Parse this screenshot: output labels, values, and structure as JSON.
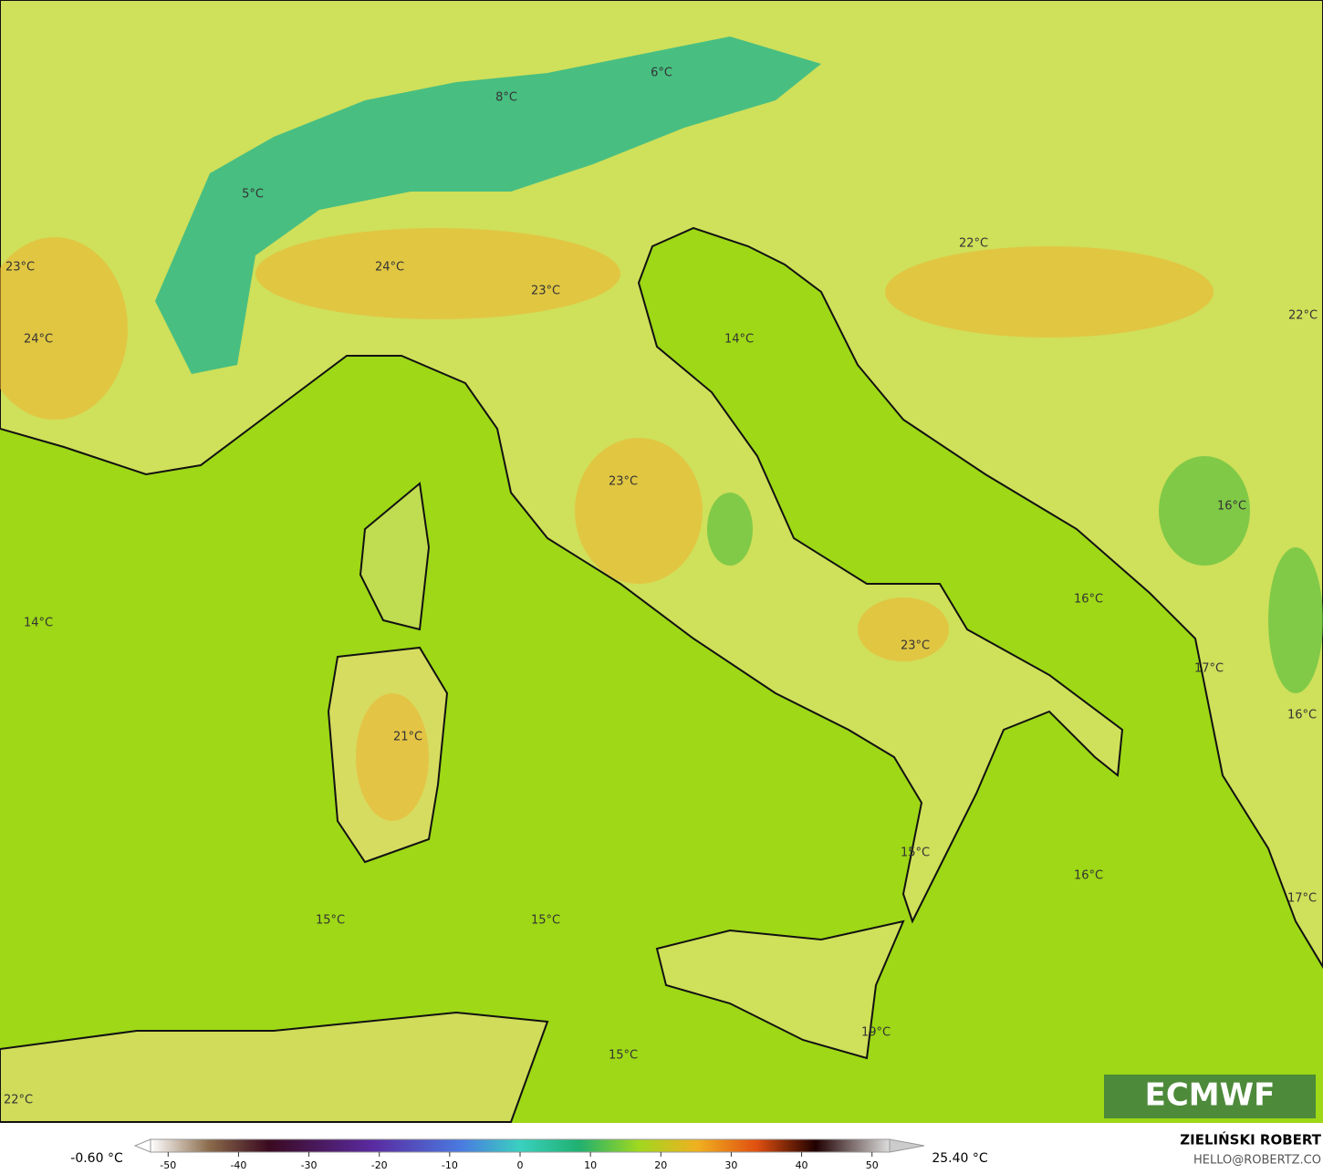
{
  "map": {
    "labels": [
      "6°C",
      "8°C",
      "5°C",
      "22°C",
      "23°C",
      "24°C",
      "23°C",
      "22°C",
      "14°C",
      "24°C",
      "23°C",
      "16°C",
      "16°C",
      "14°C",
      "23°C",
      "17°C",
      "16°C",
      "21°C",
      "15°C",
      "16°C",
      "17°C",
      "15°C",
      "15°C",
      "19°C",
      "15°C",
      "22°C"
    ]
  },
  "colorbar": {
    "min_label": "-0.60 °C",
    "max_label": "25.40 °C",
    "range": [
      -52.5,
      52.5
    ],
    "ticks": [
      -50,
      -40,
      -30,
      -20,
      -10,
      0,
      10,
      20,
      30,
      40,
      50
    ]
  },
  "credit": {
    "name": "ZIELIŃSKI ROBERT",
    "email": "HELLO@ROBERTZ.CO"
  },
  "logo": "ECMWF"
}
